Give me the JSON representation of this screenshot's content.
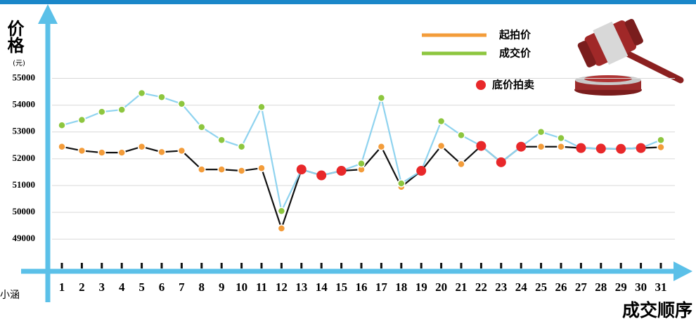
{
  "chart_data": {
    "type": "line",
    "y_title": "价格",
    "y_unit": "(元)",
    "x_title": "成交顺序",
    "watermark": "小涵",
    "categories": [
      "1",
      "2",
      "3",
      "4",
      "5",
      "6",
      "7",
      "8",
      "9",
      "10",
      "11",
      "12",
      "13",
      "14",
      "15",
      "16",
      "17",
      "18",
      "19",
      "20",
      "21",
      "22",
      "23",
      "24",
      "25",
      "26",
      "27",
      "28",
      "29",
      "30",
      "31"
    ],
    "series": [
      {
        "name": "起拍价",
        "color": "#f39c3a",
        "line_color": "#111111",
        "values": [
          52450,
          52300,
          52230,
          52230,
          52450,
          52250,
          52300,
          51600,
          51600,
          51550,
          51650,
          49400,
          51600,
          51380,
          51550,
          51600,
          52450,
          50950,
          51550,
          52480,
          51800,
          52480,
          51870,
          52450,
          52450,
          52450,
          52400,
          52380,
          52370,
          52400,
          52430
        ]
      },
      {
        "name": "成交价",
        "color": "#8dc63f",
        "line_color": "#8fd3ef",
        "values": [
          53250,
          53450,
          53750,
          53830,
          54450,
          54300,
          54050,
          53180,
          52700,
          52450,
          53930,
          50050,
          51600,
          51380,
          51550,
          51820,
          54270,
          51080,
          51550,
          53400,
          52880,
          52480,
          51870,
          52450,
          53000,
          52770,
          52400,
          52380,
          52370,
          52400,
          52700
        ]
      },
      {
        "name": "底价拍卖",
        "color": "#e8282a",
        "values": [
          null,
          null,
          null,
          null,
          null,
          null,
          null,
          null,
          null,
          null,
          null,
          null,
          51600,
          51380,
          51550,
          null,
          null,
          null,
          51550,
          null,
          null,
          52480,
          51870,
          52450,
          null,
          null,
          52400,
          52380,
          52370,
          52400,
          null
        ]
      }
    ],
    "ylim": [
      47800,
      57400
    ],
    "yticks": [
      49000,
      50000,
      51000,
      52000,
      53000,
      54000,
      55000
    ],
    "grid": true
  }
}
